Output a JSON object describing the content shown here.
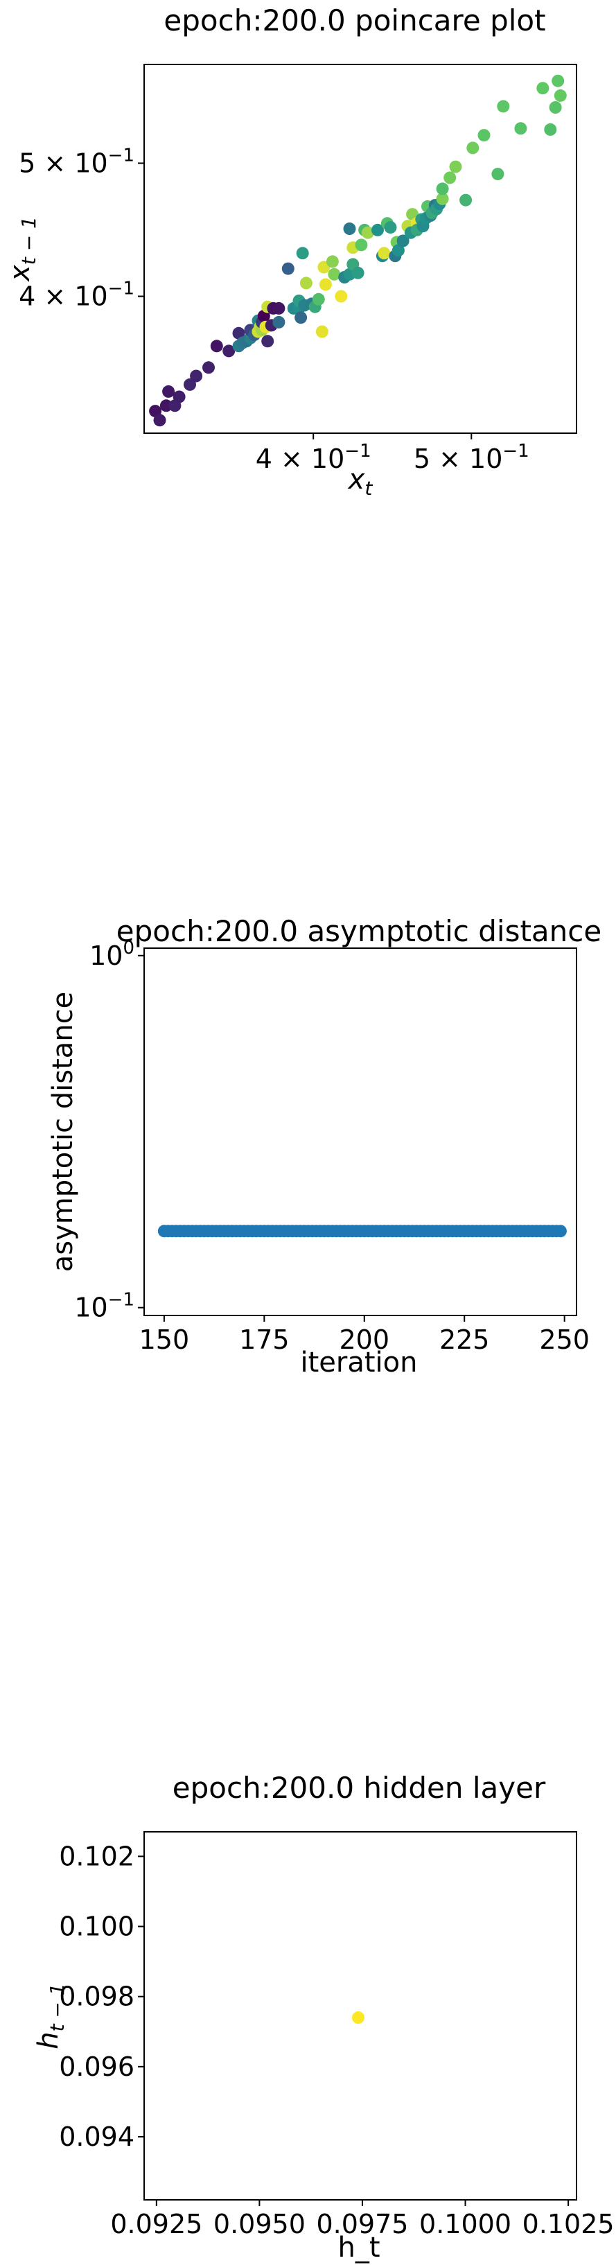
{
  "chart_data": [
    {
      "type": "scatter",
      "title": "epoch:200.0 poincare plot",
      "xlabel": "x_t",
      "ylabel": "x_{t-1}",
      "xscale": "log",
      "yscale": "log",
      "xlim": [
        0.315,
        0.58
      ],
      "ylim": [
        0.318,
        0.59
      ],
      "xticks": [
        {
          "value": 0.4,
          "label": "4 × 10⁻¹"
        },
        {
          "value": 0.5,
          "label": "5 × 10⁻¹"
        }
      ],
      "yticks": [
        {
          "value": 0.4,
          "label": "4 × 10⁻¹"
        },
        {
          "value": 0.5,
          "label": "5 × 10⁻¹"
        }
      ],
      "grid": false,
      "colormap": "viridis",
      "points": [
        {
          "x": 0.32,
          "y": 0.33,
          "c": 0.05
        },
        {
          "x": 0.322,
          "y": 0.325,
          "c": 0.08
        },
        {
          "x": 0.325,
          "y": 0.333,
          "c": 0.06
        },
        {
          "x": 0.326,
          "y": 0.341,
          "c": 0.07
        },
        {
          "x": 0.329,
          "y": 0.333,
          "c": 0.1
        },
        {
          "x": 0.331,
          "y": 0.338,
          "c": 0.09
        },
        {
          "x": 0.336,
          "y": 0.345,
          "c": 0.12
        },
        {
          "x": 0.339,
          "y": 0.35,
          "c": 0.11
        },
        {
          "x": 0.345,
          "y": 0.355,
          "c": 0.1
        },
        {
          "x": 0.349,
          "y": 0.368,
          "c": 0.06
        },
        {
          "x": 0.355,
          "y": 0.365,
          "c": 0.09
        },
        {
          "x": 0.36,
          "y": 0.368,
          "c": 0.42
        },
        {
          "x": 0.36,
          "y": 0.376,
          "c": 0.13
        },
        {
          "x": 0.362,
          "y": 0.37,
          "c": 0.4
        },
        {
          "x": 0.364,
          "y": 0.371,
          "c": 0.38
        },
        {
          "x": 0.366,
          "y": 0.373,
          "c": 0.44
        },
        {
          "x": 0.366,
          "y": 0.378,
          "c": 0.2
        },
        {
          "x": 0.368,
          "y": 0.375,
          "c": 0.3
        },
        {
          "x": 0.37,
          "y": 0.384,
          "c": 0.46
        },
        {
          "x": 0.37,
          "y": 0.377,
          "c": 0.93
        },
        {
          "x": 0.371,
          "y": 0.38,
          "c": 0.9
        },
        {
          "x": 0.372,
          "y": 0.378,
          "c": 0.86
        },
        {
          "x": 0.372,
          "y": 0.383,
          "c": 0.18
        },
        {
          "x": 0.373,
          "y": 0.387,
          "c": 0.0
        },
        {
          "x": 0.374,
          "y": 0.38,
          "c": 0.97
        },
        {
          "x": 0.375,
          "y": 0.393,
          "c": 0.92
        },
        {
          "x": 0.375,
          "y": 0.371,
          "c": 0.12
        },
        {
          "x": 0.377,
          "y": 0.381,
          "c": 0.1
        },
        {
          "x": 0.378,
          "y": 0.392,
          "c": 0.05
        },
        {
          "x": 0.381,
          "y": 0.392,
          "c": 0.06
        },
        {
          "x": 0.381,
          "y": 0.383,
          "c": 0.35
        },
        {
          "x": 0.386,
          "y": 0.419,
          "c": 0.3
        },
        {
          "x": 0.389,
          "y": 0.392,
          "c": 0.47
        },
        {
          "x": 0.392,
          "y": 0.392,
          "c": 0.5
        },
        {
          "x": 0.392,
          "y": 0.397,
          "c": 0.55
        },
        {
          "x": 0.393,
          "y": 0.386,
          "c": 0.34
        },
        {
          "x": 0.394,
          "y": 0.43,
          "c": 0.55
        },
        {
          "x": 0.395,
          "y": 0.394,
          "c": 0.44
        },
        {
          "x": 0.396,
          "y": 0.409,
          "c": 0.88
        },
        {
          "x": 0.399,
          "y": 0.395,
          "c": 0.42
        },
        {
          "x": 0.401,
          "y": 0.393,
          "c": 0.6
        },
        {
          "x": 0.403,
          "y": 0.398,
          "c": 0.7
        },
        {
          "x": 0.405,
          "y": 0.377,
          "c": 0.96
        },
        {
          "x": 0.406,
          "y": 0.42,
          "c": 0.95
        },
        {
          "x": 0.407,
          "y": 0.408,
          "c": 0.97
        },
        {
          "x": 0.411,
          "y": 0.424,
          "c": 0.82
        },
        {
          "x": 0.412,
          "y": 0.415,
          "c": 0.8
        },
        {
          "x": 0.416,
          "y": 0.4,
          "c": 0.98
        },
        {
          "x": 0.418,
          "y": 0.413,
          "c": 0.45
        },
        {
          "x": 0.421,
          "y": 0.415,
          "c": 0.52
        },
        {
          "x": 0.421,
          "y": 0.448,
          "c": 0.4
        },
        {
          "x": 0.423,
          "y": 0.422,
          "c": 0.6
        },
        {
          "x": 0.423,
          "y": 0.434,
          "c": 0.93
        },
        {
          "x": 0.426,
          "y": 0.416,
          "c": 0.55
        },
        {
          "x": 0.428,
          "y": 0.436,
          "c": 0.75
        },
        {
          "x": 0.43,
          "y": 0.447,
          "c": 0.68
        },
        {
          "x": 0.432,
          "y": 0.445,
          "c": 0.85
        },
        {
          "x": 0.438,
          "y": 0.447,
          "c": 0.5
        },
        {
          "x": 0.441,
          "y": 0.428,
          "c": 0.47
        },
        {
          "x": 0.442,
          "y": 0.43,
          "c": 0.95
        },
        {
          "x": 0.444,
          "y": 0.452,
          "c": 0.7
        },
        {
          "x": 0.446,
          "y": 0.449,
          "c": 0.55
        },
        {
          "x": 0.449,
          "y": 0.428,
          "c": 0.4
        },
        {
          "x": 0.45,
          "y": 0.438,
          "c": 0.78
        },
        {
          "x": 0.451,
          "y": 0.432,
          "c": 0.5
        },
        {
          "x": 0.454,
          "y": 0.439,
          "c": 0.45
        },
        {
          "x": 0.457,
          "y": 0.45,
          "c": 0.9
        },
        {
          "x": 0.459,
          "y": 0.445,
          "c": 0.52
        },
        {
          "x": 0.46,
          "y": 0.459,
          "c": 0.82
        },
        {
          "x": 0.463,
          "y": 0.452,
          "c": 0.97
        },
        {
          "x": 0.463,
          "y": 0.447,
          "c": 0.6
        },
        {
          "x": 0.466,
          "y": 0.455,
          "c": 0.55
        },
        {
          "x": 0.467,
          "y": 0.45,
          "c": 0.48
        },
        {
          "x": 0.469,
          "y": 0.456,
          "c": 0.5
        },
        {
          "x": 0.47,
          "y": 0.465,
          "c": 0.72
        },
        {
          "x": 0.472,
          "y": 0.458,
          "c": 0.45
        },
        {
          "x": 0.473,
          "y": 0.46,
          "c": 0.6
        },
        {
          "x": 0.475,
          "y": 0.466,
          "c": 0.4
        },
        {
          "x": 0.476,
          "y": 0.463,
          "c": 0.55
        },
        {
          "x": 0.478,
          "y": 0.467,
          "c": 0.48
        },
        {
          "x": 0.48,
          "y": 0.471,
          "c": 0.8
        },
        {
          "x": 0.48,
          "y": 0.479,
          "c": 0.7
        },
        {
          "x": 0.485,
          "y": 0.488,
          "c": 0.78
        },
        {
          "x": 0.489,
          "y": 0.497,
          "c": 0.8
        },
        {
          "x": 0.496,
          "y": 0.47,
          "c": 0.65
        },
        {
          "x": 0.501,
          "y": 0.513,
          "c": 0.78
        },
        {
          "x": 0.509,
          "y": 0.524,
          "c": 0.73
        },
        {
          "x": 0.519,
          "y": 0.491,
          "c": 0.7
        },
        {
          "x": 0.523,
          "y": 0.55,
          "c": 0.74
        },
        {
          "x": 0.536,
          "y": 0.53,
          "c": 0.72
        },
        {
          "x": 0.553,
          "y": 0.567,
          "c": 0.75
        },
        {
          "x": 0.559,
          "y": 0.529,
          "c": 0.7
        },
        {
          "x": 0.565,
          "y": 0.574,
          "c": 0.74
        },
        {
          "x": 0.563,
          "y": 0.549,
          "c": 0.72
        },
        {
          "x": 0.567,
          "y": 0.56,
          "c": 0.76
        }
      ]
    },
    {
      "type": "scatter",
      "title": "epoch:200.0 asymptotic distance",
      "xlabel": "iteration",
      "ylabel": "asymptotic distance",
      "yscale": "log",
      "xlim": [
        145,
        253
      ],
      "ylim": [
        0.095,
        1.05
      ],
      "xticks": [
        150,
        175,
        200,
        225,
        250
      ],
      "yticks": [
        {
          "value": 1,
          "label": "10⁰"
        },
        {
          "value": 0.1,
          "label": "10⁻¹"
        }
      ],
      "grid": false,
      "color": "#1f77b4",
      "x_start": 150,
      "x_end": 249,
      "y_value": 0.165
    },
    {
      "type": "scatter",
      "title": "epoch:200.0 hidden layer",
      "xlabel": "h_t",
      "ylabel": "h_{t-1}",
      "xlim": [
        0.0922,
        0.1027
      ],
      "ylim": [
        0.0922,
        0.1027
      ],
      "xticks": [
        0.0925,
        0.095,
        0.0975,
        0.1,
        0.1025
      ],
      "yticks": [
        0.094,
        0.096,
        0.098,
        0.1,
        0.102
      ],
      "xtick_labels": [
        "0.0925",
        "0.0950",
        "0.0975",
        "0.1000",
        "0.1025"
      ],
      "ytick_labels": [
        "0.094",
        "0.096",
        "0.098",
        "0.100",
        "0.102"
      ],
      "grid": false,
      "color": "#fde725",
      "points": [
        {
          "x": 0.0974,
          "y": 0.0974
        }
      ]
    }
  ]
}
